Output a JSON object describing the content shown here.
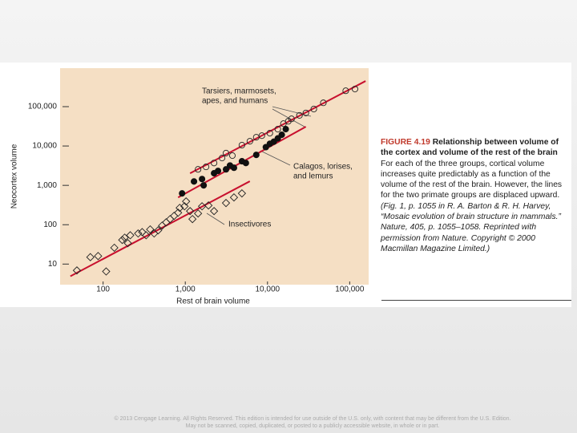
{
  "chart_data": {
    "type": "scatter",
    "log_x": true,
    "log_y": true,
    "x_label": "Rest of brain volume",
    "y_label": "Neocortex volume",
    "xlim": [
      30,
      170000
    ],
    "ylim": [
      3,
      950000
    ],
    "xticks": [
      100,
      {
        "value": 1000,
        "label": "1,000"
      },
      {
        "value": 10000,
        "label": "10,000"
      },
      {
        "value": 100000,
        "label": "100,000"
      }
    ],
    "yticks": [
      10,
      100,
      {
        "value": 1000,
        "label": "1,000"
      },
      {
        "value": 10000,
        "label": "10,000"
      },
      {
        "value": 100000,
        "label": "100,000"
      }
    ],
    "background": "#f5dfc4",
    "series": [
      {
        "marker": "diamond",
        "color": "#222222",
        "x": [
          48,
          70,
          87,
          109,
          137,
          171,
          183,
          200,
          214,
          267,
          299,
          334,
          374,
          418,
          468,
          523,
          585,
          654,
          731,
          818,
          855,
          978,
          1023,
          1143,
          1222,
          1430,
          1599,
          1914,
          2238,
          3128,
          3910,
          4887
        ],
        "values": [
          6.9,
          15,
          16,
          6.5,
          26,
          41,
          47,
          34,
          54,
          60,
          65,
          54,
          76,
          60,
          72,
          95,
          115,
          139,
          168,
          202,
          268,
          294,
          391,
          222,
          139,
          193,
          294,
          309,
          222,
          356,
          494,
          625
        ]
      },
      {
        "marker": "circle-filled",
        "color": "#111111",
        "x": [
          914,
          1276,
          1599,
          1673,
          2238,
          2502,
          3128,
          3497,
          3910,
          4887,
          5460,
          7300,
          9550,
          10680,
          11950,
          13350,
          14920,
          16680
        ],
        "values": [
          625,
          1255,
          1450,
          1000,
          2030,
          2330,
          2550,
          3200,
          2800,
          4100,
          3700,
          5950,
          9350,
          11400,
          12900,
          15600,
          19300,
          26800
        ]
      },
      {
        "marker": "circle-open",
        "color": "#222222",
        "x": [
          1430,
          1788,
          2238,
          2800,
          3128,
          3740,
          4887,
          6110,
          7300,
          8540,
          10680,
          13350,
          15630,
          17900,
          19600,
          24500,
          29300,
          36600,
          47800,
          89500,
          116000
        ],
        "values": [
          2550,
          2950,
          3700,
          4950,
          6600,
          5700,
          10500,
          13200,
          16700,
          18300,
          21200,
          26800,
          37000,
          42500,
          49000,
          60000,
          69000,
          87000,
          125000,
          253000,
          280000
        ]
      }
    ],
    "fit_color": "#c8102e",
    "fit_lines": [
      {
        "x": [
          40,
          6100
        ],
        "y": [
          4.9,
          1270
        ]
      },
      {
        "x": [
          818,
          29300
        ],
        "y": [
          494,
          30900
        ]
      },
      {
        "x": [
          1143,
          156000
        ],
        "y": [
          2020,
          447000
        ]
      }
    ],
    "annotations": [
      {
        "lines": [
          "Tarsiers, marmosets,",
          "apes, and humans"
        ]
      },
      {
        "lines": [
          "Calagos, lorises,",
          "and lemurs"
        ]
      },
      {
        "lines": [
          "Insectivores"
        ]
      }
    ]
  },
  "caption": {
    "figure": "FIGURE 4.19",
    "heading": "Relationship between volume of the cortex and volume of the rest of the brain",
    "body": "For each of the three groups, cortical volume increases quite predictably as a function of the volume of the rest of the brain. However, the lines for the two primate groups are displaced upward. ",
    "citation": "(Fig. 1, p. 1055 in R. A. Barton & R. H. Harvey, “Mosaic evolution of brain structure in mammals.” Nature, 405, p. 1055–1058. Reprinted with permission from Nature. Copyright © 2000 Macmillan Magazine Limited.)"
  },
  "footer": [
    "© 2013 Cengage Learning. All Rights Reserved. This edition is intended for use outside of the U.S. only, with content that may be different from the U.S. Edition.",
    "May not be scanned, copied, duplicated, or posted to a publicly accessible website, in whole or in part."
  ]
}
